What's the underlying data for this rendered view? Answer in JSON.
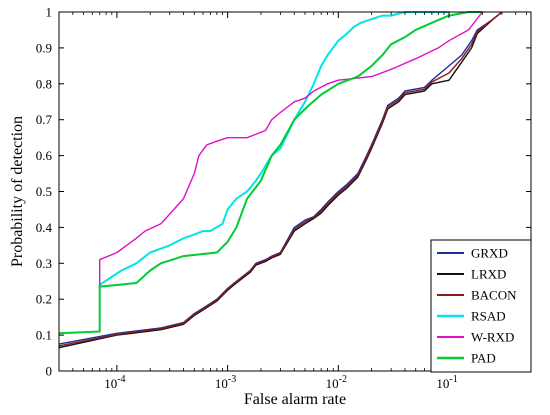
{
  "chart_data": {
    "type": "line",
    "title": "",
    "xlabel": "False alarm rate",
    "ylabel": "Probability of detection",
    "x_scale": "log",
    "xlim": [
      3e-05,
      0.55
    ],
    "ylim": [
      0,
      1
    ],
    "x_ticks": [
      {
        "value": 0.0001,
        "base": "10",
        "exp": "-4"
      },
      {
        "value": 0.001,
        "base": "10",
        "exp": "-3"
      },
      {
        "value": 0.01,
        "base": "10",
        "exp": "-2"
      },
      {
        "value": 0.1,
        "base": "10",
        "exp": "-1"
      }
    ],
    "y_ticks": [
      "0",
      "0.1",
      "0.2",
      "0.3",
      "0.4",
      "0.5",
      "0.6",
      "0.7",
      "0.8",
      "0.9",
      "1"
    ],
    "grid": false,
    "legend_position": "bottom-right",
    "series": [
      {
        "name": "GRXD",
        "color": "#1f2fa0",
        "x": [
          3e-05,
          0.0001,
          0.00025,
          0.0004,
          0.0005,
          0.0006,
          0.0008,
          0.001,
          0.0012,
          0.0016,
          0.0018,
          0.0022,
          0.0025,
          0.003,
          0.004,
          0.005,
          0.006,
          0.007,
          0.008,
          0.01,
          0.012,
          0.015,
          0.018,
          0.02,
          0.025,
          0.028,
          0.035,
          0.04,
          0.06,
          0.07,
          0.1,
          0.13,
          0.16,
          0.18,
          0.25,
          0.3
        ],
        "y": [
          0.075,
          0.105,
          0.12,
          0.135,
          0.16,
          0.175,
          0.2,
          0.23,
          0.25,
          0.28,
          0.3,
          0.31,
          0.32,
          0.33,
          0.4,
          0.42,
          0.43,
          0.45,
          0.47,
          0.5,
          0.52,
          0.55,
          0.6,
          0.63,
          0.7,
          0.74,
          0.76,
          0.78,
          0.79,
          0.81,
          0.85,
          0.88,
          0.92,
          0.95,
          0.98,
          1.0
        ]
      },
      {
        "name": "LRXD",
        "color": "#111111",
        "x": [
          3e-05,
          0.0001,
          0.00025,
          0.0004,
          0.0005,
          0.0006,
          0.0008,
          0.001,
          0.0012,
          0.0016,
          0.0018,
          0.0022,
          0.0025,
          0.003,
          0.004,
          0.005,
          0.006,
          0.007,
          0.008,
          0.01,
          0.012,
          0.015,
          0.018,
          0.02,
          0.025,
          0.028,
          0.035,
          0.04,
          0.06,
          0.07,
          0.1,
          0.13,
          0.16,
          0.18,
          0.25,
          0.3
        ],
        "y": [
          0.065,
          0.1,
          0.115,
          0.13,
          0.155,
          0.17,
          0.195,
          0.225,
          0.245,
          0.275,
          0.295,
          0.305,
          0.315,
          0.325,
          0.39,
          0.41,
          0.425,
          0.44,
          0.46,
          0.49,
          0.51,
          0.54,
          0.59,
          0.62,
          0.69,
          0.73,
          0.75,
          0.77,
          0.78,
          0.8,
          0.81,
          0.86,
          0.9,
          0.94,
          0.98,
          1.0
        ]
      },
      {
        "name": "BACON",
        "color": "#8b1a1a",
        "x": [
          3e-05,
          0.0001,
          0.00025,
          0.0004,
          0.0005,
          0.0006,
          0.0008,
          0.001,
          0.0012,
          0.0016,
          0.0018,
          0.0022,
          0.0025,
          0.003,
          0.004,
          0.005,
          0.006,
          0.007,
          0.008,
          0.01,
          0.012,
          0.015,
          0.018,
          0.02,
          0.025,
          0.028,
          0.035,
          0.04,
          0.06,
          0.07,
          0.1,
          0.13,
          0.16,
          0.18,
          0.25,
          0.3
        ],
        "y": [
          0.07,
          0.102,
          0.118,
          0.132,
          0.158,
          0.172,
          0.198,
          0.228,
          0.248,
          0.278,
          0.298,
          0.308,
          0.318,
          0.328,
          0.395,
          0.415,
          0.428,
          0.445,
          0.465,
          0.495,
          0.515,
          0.545,
          0.595,
          0.625,
          0.695,
          0.735,
          0.755,
          0.775,
          0.785,
          0.805,
          0.83,
          0.87,
          0.91,
          0.945,
          0.98,
          1.0
        ]
      },
      {
        "name": "RSAD",
        "color": "#00e5e5",
        "x": [
          7e-05,
          7e-05,
          0.00011,
          0.00015,
          0.0002,
          0.0003,
          0.0004,
          0.0005,
          0.0006,
          0.0007,
          0.0009,
          0.001,
          0.0012,
          0.0015,
          0.0018,
          0.002,
          0.0025,
          0.003,
          0.004,
          0.005,
          0.006,
          0.007,
          0.008,
          0.01,
          0.012,
          0.014,
          0.016,
          0.02,
          0.025,
          0.03,
          0.04,
          0.05,
          0.08,
          0.1
        ],
        "y": [
          0.23,
          0.24,
          0.28,
          0.3,
          0.33,
          0.35,
          0.37,
          0.38,
          0.39,
          0.39,
          0.41,
          0.45,
          0.48,
          0.5,
          0.53,
          0.55,
          0.6,
          0.62,
          0.7,
          0.75,
          0.8,
          0.85,
          0.88,
          0.92,
          0.94,
          0.96,
          0.97,
          0.98,
          0.99,
          0.99,
          1.0,
          1.0,
          1.0,
          1.0
        ]
      },
      {
        "name": "W-RXD",
        "color": "#e010c8",
        "x": [
          7e-05,
          7e-05,
          0.0001,
          0.00015,
          0.00018,
          0.00025,
          0.00035,
          0.0004,
          0.0005,
          0.00055,
          0.00065,
          0.0008,
          0.001,
          0.0015,
          0.0022,
          0.0025,
          0.003,
          0.004,
          0.005,
          0.006,
          0.008,
          0.01,
          0.02,
          0.03,
          0.05,
          0.08,
          0.1,
          0.15,
          0.2
        ],
        "y": [
          0.23,
          0.31,
          0.33,
          0.37,
          0.39,
          0.41,
          0.46,
          0.48,
          0.55,
          0.6,
          0.63,
          0.64,
          0.65,
          0.65,
          0.67,
          0.7,
          0.72,
          0.75,
          0.76,
          0.78,
          0.8,
          0.81,
          0.82,
          0.84,
          0.87,
          0.9,
          0.92,
          0.95,
          1.0
        ]
      },
      {
        "name": "PAD",
        "color": "#00cc33",
        "x": [
          3e-05,
          7e-05,
          7e-05,
          0.00015,
          0.0002,
          0.00025,
          0.0004,
          0.0008,
          0.001,
          0.0012,
          0.0015,
          0.002,
          0.0025,
          0.003,
          0.004,
          0.005,
          0.007,
          0.01,
          0.015,
          0.02,
          0.025,
          0.03,
          0.04,
          0.05,
          0.07,
          0.1,
          0.15,
          0.2
        ],
        "y": [
          0.105,
          0.11,
          0.235,
          0.245,
          0.28,
          0.3,
          0.32,
          0.33,
          0.36,
          0.4,
          0.48,
          0.53,
          0.6,
          0.63,
          0.7,
          0.73,
          0.77,
          0.8,
          0.82,
          0.85,
          0.88,
          0.91,
          0.93,
          0.95,
          0.97,
          0.99,
          1.0,
          1.0
        ]
      }
    ]
  }
}
